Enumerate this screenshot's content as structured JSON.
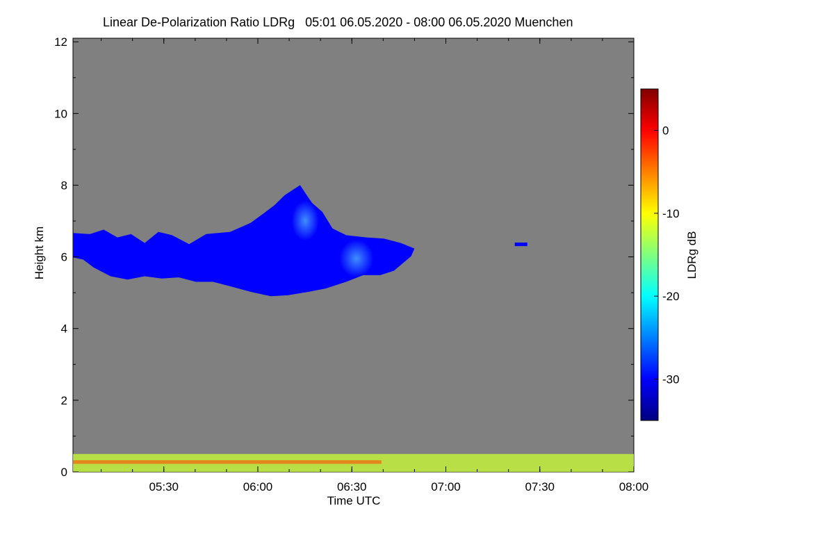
{
  "chart_data": {
    "type": "heatmap",
    "title": "Linear De-Polarization Ratio LDRg   05:01 06.05.2020 - 08:00 06.05.2020 Muenchen",
    "xlabel": "Time UTC",
    "ylabel": "Height km",
    "colorbar_label": "LDRg dB",
    "xlim": [
      "05:01",
      "08:00"
    ],
    "ylim": [
      0,
      12.1
    ],
    "x_ticks": [
      "05:30",
      "06:00",
      "06:30",
      "07:00",
      "07:30",
      "08:00"
    ],
    "y_ticks": [
      "0",
      "2",
      "4",
      "6",
      "8",
      "10",
      "12"
    ],
    "colorbar_range": [
      -35,
      5
    ],
    "colorbar_ticks": [
      "0",
      "-10",
      "-20",
      "-30"
    ],
    "colorscale": "jet",
    "background_color": "#808080",
    "features": [
      {
        "name": "cirrus cloud",
        "time_start": "05:01",
        "time_end": "06:50",
        "height_bottom": 4.9,
        "height_top": 8.0,
        "ldr_db": -30
      },
      {
        "name": "small cloud patch",
        "time_start": "07:22",
        "time_end": "07:26",
        "height_bottom": 6.3,
        "height_top": 6.4,
        "ldr_db": -30
      },
      {
        "name": "near-surface aerosol layer",
        "time_start": "05:01",
        "time_end": "08:00",
        "height_bottom": 0.0,
        "height_top": 0.5,
        "ldr_db": -12
      }
    ]
  }
}
